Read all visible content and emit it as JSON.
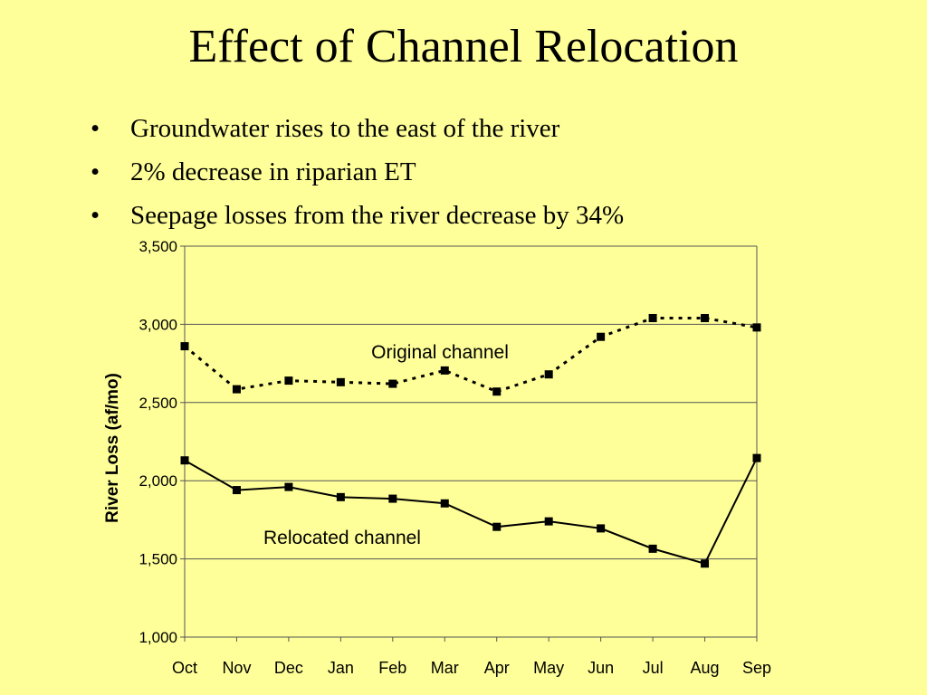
{
  "slide": {
    "title": "Effect of Channel Relocation",
    "bullets": [
      "Groundwater rises to the east of the river",
      "2% decrease in riparian ET",
      "Seepage losses from the river decrease by 34%"
    ],
    "bullet_glyph": "•"
  },
  "colors": {
    "background": "#ffff99",
    "line": "#000000",
    "plot_background": "#ffffa0"
  },
  "chart_data": {
    "type": "line",
    "title": "",
    "xlabel": "",
    "ylabel": "River Loss (af/mo)",
    "categories": [
      "Oct",
      "Nov",
      "Dec",
      "Jan",
      "Feb",
      "Mar",
      "Apr",
      "May",
      "Jun",
      "Jul",
      "Aug",
      "Sep"
    ],
    "ylim": [
      1000,
      3500
    ],
    "yticks": [
      1000,
      1500,
      2000,
      2500,
      3000,
      3500
    ],
    "ytick_labels": [
      "1,000",
      "1,500",
      "2,000",
      "2,500",
      "3,000",
      "3,500"
    ],
    "grid": true,
    "series": [
      {
        "label": "Original channel",
        "style": "dotted",
        "values": [
          2860,
          2585,
          2640,
          2630,
          2620,
          2705,
          2570,
          2680,
          2920,
          3040,
          3040,
          2980
        ]
      },
      {
        "label": "Relocated channel",
        "style": "solid",
        "values": [
          2130,
          1940,
          1960,
          1895,
          1885,
          1855,
          1705,
          1740,
          1695,
          1565,
          1470,
          2145
        ]
      }
    ]
  }
}
